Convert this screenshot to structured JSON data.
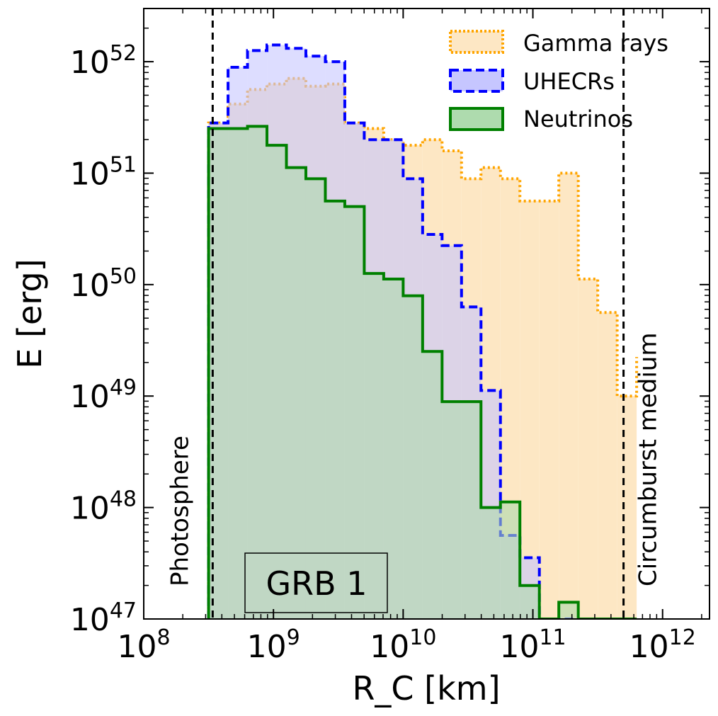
{
  "chart_data": {
    "type": "histogram",
    "title": "",
    "xlabel": "R_C [km]",
    "ylabel": "E [erg]",
    "xscale": "log",
    "yscale": "log",
    "xlim": [
      100000000,
      2300000000000
    ],
    "ylim": [
      1e+47,
      3e+52
    ],
    "x_ticks": [
      {
        "value": 100000000.0,
        "base": "10",
        "exp": "8"
      },
      {
        "value": 1000000000.0,
        "base": "10",
        "exp": "9"
      },
      {
        "value": 10000000000.0,
        "base": "10",
        "exp": "10"
      },
      {
        "value": 100000000000.0,
        "base": "10",
        "exp": "11"
      },
      {
        "value": 1000000000000.0,
        "base": "10",
        "exp": "12"
      }
    ],
    "y_ticks": [
      {
        "value": 1e+47,
        "base": "10",
        "exp": "47"
      },
      {
        "value": 1e+48,
        "base": "10",
        "exp": "48"
      },
      {
        "value": 1e+49,
        "base": "10",
        "exp": "49"
      },
      {
        "value": 1e+50,
        "base": "10",
        "exp": "50"
      },
      {
        "value": 1e+51,
        "base": "10",
        "exp": "51"
      },
      {
        "value": 1e+52,
        "base": "10",
        "exp": "52"
      }
    ],
    "bin_log_edges": [
      8.5,
      8.65,
      8.8,
      8.95,
      9.1,
      9.25,
      9.4,
      9.55,
      9.7,
      9.85,
      10.0,
      10.15,
      10.3,
      10.45,
      10.6,
      10.75,
      10.9,
      11.05,
      11.2,
      11.35,
      11.5,
      11.65,
      11.8
    ],
    "series": [
      {
        "name": "Gamma rays",
        "color": "#ffa500",
        "fill": "#fde7c4",
        "linestyle": "dotted",
        "log_values": [
          51.45,
          51.62,
          51.75,
          51.8,
          51.85,
          51.78,
          51.8,
          51.45,
          51.4,
          51.3,
          51.25,
          51.3,
          51.2,
          50.95,
          51.05,
          50.95,
          50.75,
          50.75,
          51.0,
          50.05,
          49.75,
          49.0,
          49.35
        ]
      },
      {
        "name": "UHECRs",
        "color": "#0000ff",
        "fill": "#c6c6ff",
        "linestyle": "dashed",
        "log_values": [
          51.45,
          51.95,
          52.1,
          52.15,
          52.12,
          52.05,
          52.0,
          51.45,
          51.3,
          51.3,
          50.95,
          50.45,
          50.35,
          49.8,
          49.05,
          47.75,
          47.55,
          0,
          0,
          0,
          0,
          0,
          0
        ]
      },
      {
        "name": "Neutrinos",
        "color": "#008000",
        "fill": "#aedbae",
        "linestyle": "solid",
        "log_values": [
          51.4,
          51.4,
          51.42,
          51.25,
          51.05,
          50.95,
          50.75,
          50.7,
          50.1,
          50.05,
          49.9,
          49.4,
          48.95,
          48.95,
          48.0,
          48.05,
          47.3,
          0,
          47.15,
          0,
          0,
          0,
          0
        ]
      }
    ],
    "vlines": [
      {
        "value": 340000000,
        "label": "Photosphere"
      },
      {
        "value": 500000000000,
        "label": "Circumburst medium"
      }
    ],
    "annotation": "GRB 1",
    "legend_location": "top-right"
  }
}
